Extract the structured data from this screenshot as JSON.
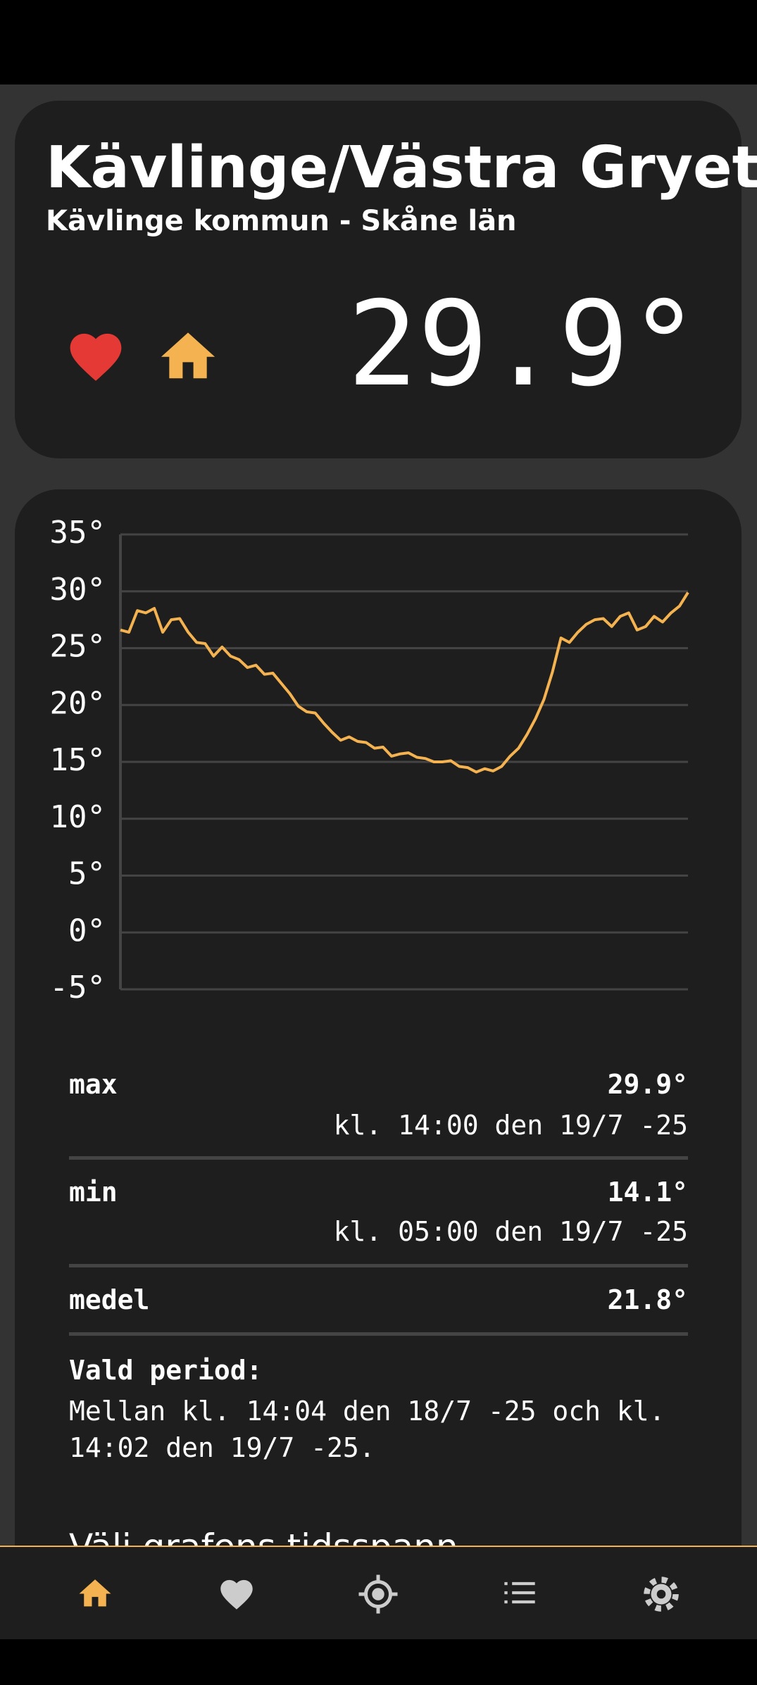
{
  "header": {
    "title": "Kävlinge/Västra Gryet",
    "subtitle": "Kävlinge kommun - Skåne län",
    "temperature": "29.9°"
  },
  "chart_data": {
    "type": "line",
    "color": "#f4b350",
    "grid": true,
    "ylim": [
      -5,
      35
    ],
    "yticks": [
      {
        "value": -5,
        "label": "-5°"
      },
      {
        "value": 0,
        "label": "0°"
      },
      {
        "value": 5,
        "label": "5°"
      },
      {
        "value": 10,
        "label": "10°"
      },
      {
        "value": 15,
        "label": "15°"
      },
      {
        "value": 20,
        "label": "20°"
      },
      {
        "value": 25,
        "label": "25°"
      },
      {
        "value": 30,
        "label": "30°"
      },
      {
        "value": 35,
        "label": "35°"
      }
    ],
    "values": [
      26.6,
      26.4,
      28.3,
      28.1,
      28.5,
      26.4,
      27.5,
      27.6,
      26.4,
      25.5,
      25.4,
      24.3,
      25.1,
      24.3,
      24.0,
      23.3,
      23.5,
      22.7,
      22.8,
      21.9,
      21.0,
      19.9,
      19.4,
      19.3,
      18.4,
      17.6,
      16.9,
      17.2,
      16.8,
      16.7,
      16.2,
      16.3,
      15.5,
      15.7,
      15.8,
      15.4,
      15.3,
      15.0,
      15.0,
      15.1,
      14.6,
      14.5,
      14.1,
      14.4,
      14.2,
      14.6,
      15.5,
      16.2,
      17.4,
      18.8,
      20.5,
      22.9,
      25.9,
      25.5,
      26.4,
      27.1,
      27.5,
      27.6,
      26.9,
      27.8,
      28.1,
      26.6,
      26.9,
      27.8,
      27.3,
      28.1,
      28.7,
      29.9
    ]
  },
  "stats": {
    "rows": [
      {
        "label": "max",
        "value": "29.9°",
        "time": "kl. 14:00 den 19/7 -25"
      },
      {
        "label": "min",
        "value": "14.1°",
        "time": "kl. 05:00 den 19/7 -25"
      },
      {
        "label": "medel",
        "value": "21.8°"
      }
    ]
  },
  "period": {
    "heading": "Vald period:",
    "text": "Mellan kl. 14:04 den 18/7 -25 och kl. 14:02 den 19/7 -25."
  },
  "section_heading": "Välj grafens tidsspann"
}
